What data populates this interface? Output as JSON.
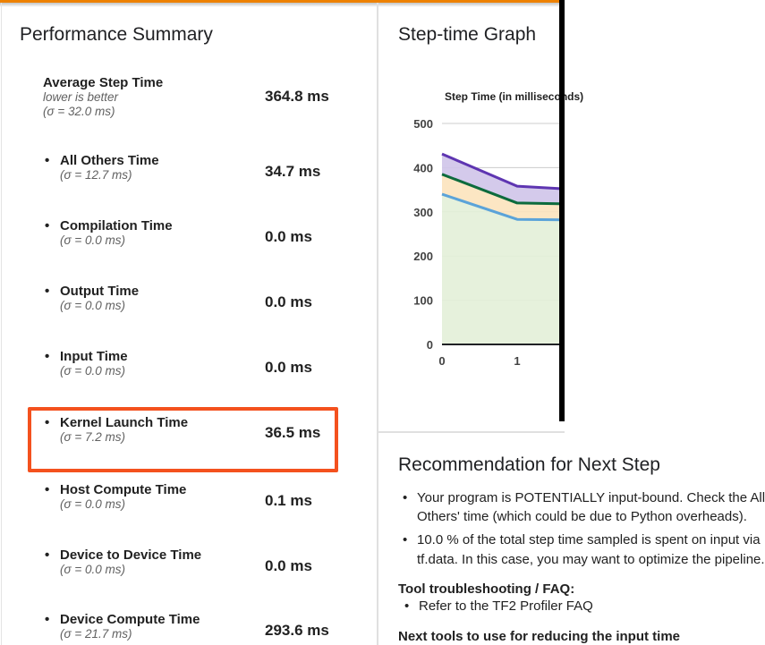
{
  "page": {
    "top_bar_color": "#ee8100",
    "bullet_char": "•"
  },
  "performance": {
    "title": "Performance Summary",
    "highlight_color": "#f4511e",
    "rows": [
      {
        "label": "Average Step Time",
        "note": "lower is better",
        "sigma": "(σ = 32.0 ms)",
        "value": "364.8 ms"
      },
      {
        "label": "All Others Time",
        "sigma": "(σ = 12.7 ms)",
        "value": "34.7 ms"
      },
      {
        "label": "Compilation Time",
        "sigma": "(σ = 0.0 ms)",
        "value": "0.0 ms"
      },
      {
        "label": "Output Time",
        "sigma": "(σ = 0.0 ms)",
        "value": "0.0 ms"
      },
      {
        "label": "Input Time",
        "sigma": "(σ = 0.0 ms)",
        "value": "0.0 ms"
      },
      {
        "label": "Kernel Launch Time",
        "sigma": "(σ = 7.2 ms)",
        "value": "36.5 ms"
      },
      {
        "label": "Host Compute Time",
        "sigma": "(σ = 0.0 ms)",
        "value": "0.1 ms"
      },
      {
        "label": "Device to Device Time",
        "sigma": "(σ = 0.0 ms)",
        "value": "0.0 ms"
      },
      {
        "label": "Device Compute Time",
        "sigma": "(σ = 21.7 ms)",
        "value": "293.6 ms"
      }
    ]
  },
  "stepgraph": {
    "title": "Step-time Graph",
    "chart_title": "Step Time (in milliseconds)"
  },
  "chart_data": {
    "type": "area",
    "stacked": true,
    "title": "Step Time (in milliseconds)",
    "x": [
      0,
      1,
      1.63
    ],
    "x_ticks": [
      0,
      1
    ],
    "y_ticks": [
      0,
      100,
      200,
      300,
      400,
      500
    ],
    "ylim": [
      0,
      500
    ],
    "grid": true,
    "series": [
      {
        "name": "band-bottom",
        "line_color": "#5ba3d9",
        "fill_color": "#e3efd8",
        "cumulative_values": [
          340,
          283,
          282
        ]
      },
      {
        "name": "band-middle",
        "line_color": "#0d6b3d",
        "fill_color": "#fce3bd",
        "cumulative_values": [
          385,
          320,
          318
        ]
      },
      {
        "name": "band-top",
        "line_color": "#5e35b1",
        "fill_color": "#cfc4e9",
        "cumulative_values": [
          431,
          358,
          352
        ]
      }
    ]
  },
  "recommendation": {
    "title": "Recommendation for Next Step",
    "bullet1_line1": "Your program is POTENTIALLY input-bound. Check the All",
    "bullet1_line2": "Others' time (which could be due to Python overheads).",
    "bullet2_line1": "10.0 % of the total step time sampled is spent on input via",
    "bullet2_line2": "tf.data. In this case, you may want to optimize the pipeline.",
    "faq_header": "Tool troubleshooting / FAQ:",
    "faq_bullet": "Refer to the TF2 Profiler FAQ",
    "next_header": "Next tools to use for reducing the input time"
  }
}
